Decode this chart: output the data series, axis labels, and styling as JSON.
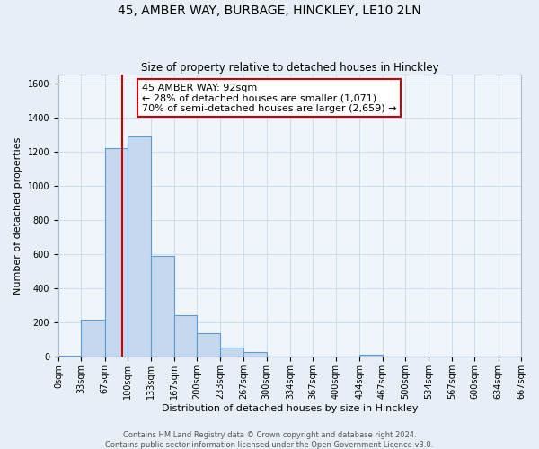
{
  "title": "45, AMBER WAY, BURBAGE, HINCKLEY, LE10 2LN",
  "subtitle": "Size of property relative to detached houses in Hinckley",
  "xlabel": "Distribution of detached houses by size in Hinckley",
  "ylabel": "Number of detached properties",
  "bar_edges": [
    0,
    33,
    67,
    100,
    133,
    167,
    200,
    233,
    267,
    300,
    334,
    367,
    400,
    434,
    467,
    500,
    534,
    567,
    600,
    634,
    667
  ],
  "bar_heights": [
    10,
    220,
    1220,
    1290,
    590,
    245,
    140,
    55,
    30,
    0,
    0,
    0,
    0,
    15,
    0,
    0,
    0,
    0,
    0,
    0
  ],
  "bar_color": "#c5d8ef",
  "bar_edge_color": "#5b9bd5",
  "property_value": 92,
  "vline_color": "#cc0000",
  "annotation_text": "45 AMBER WAY: 92sqm\n← 28% of detached houses are smaller (1,071)\n70% of semi-detached houses are larger (2,659) →",
  "annotation_box_color": "#ffffff",
  "annotation_box_edge_color": "#cc0000",
  "ylim": [
    0,
    1650
  ],
  "yticks": [
    0,
    200,
    400,
    600,
    800,
    1000,
    1200,
    1400,
    1600
  ],
  "tick_labels": [
    "0sqm",
    "33sqm",
    "67sqm",
    "100sqm",
    "133sqm",
    "167sqm",
    "200sqm",
    "233sqm",
    "267sqm",
    "300sqm",
    "334sqm",
    "367sqm",
    "400sqm",
    "434sqm",
    "467sqm",
    "500sqm",
    "534sqm",
    "567sqm",
    "600sqm",
    "634sqm",
    "667sqm"
  ],
  "footer_line1": "Contains HM Land Registry data © Crown copyright and database right 2024.",
  "footer_line2": "Contains public sector information licensed under the Open Government Licence v3.0.",
  "bg_color": "#e8eef5",
  "plot_bg_color": "#f0f5fb",
  "grid_color": "#c8d8e8",
  "title_fontsize": 10,
  "subtitle_fontsize": 8.5,
  "axis_label_fontsize": 8,
  "tick_fontsize": 7,
  "annotation_fontsize": 8,
  "footer_fontsize": 6
}
